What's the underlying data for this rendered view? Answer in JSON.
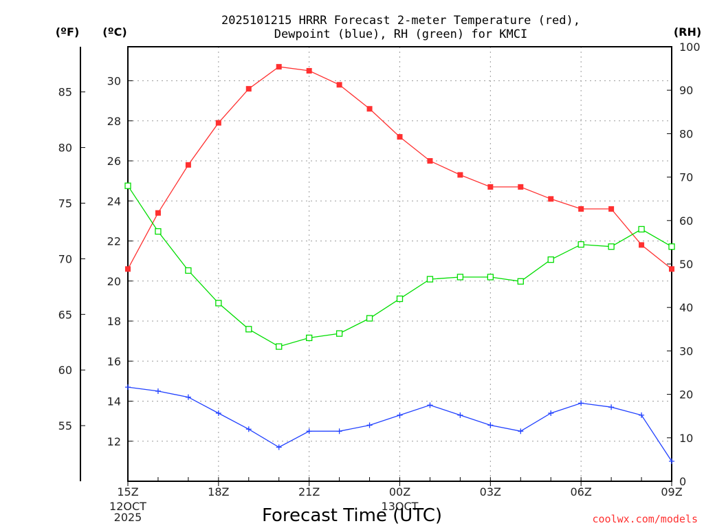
{
  "chart_data": {
    "type": "line",
    "title_line1": "2025101215 HRRR Forecast 2-meter Temperature (red),",
    "title_line2": "Dewpoint (blue), RH (green) for KMCI",
    "xlabel": "Forecast Time (UTC)",
    "credit": "coolwx.com/models",
    "units": {
      "fahrenheit": "(ºF)",
      "celsius": "(ºC)",
      "rh": "(RH)"
    },
    "x_hours": [
      0,
      1,
      2,
      3,
      4,
      5,
      6,
      7,
      8,
      9,
      10,
      11,
      12,
      13,
      14,
      15,
      16,
      17,
      18
    ],
    "x_ticks": [
      {
        "hour": 0,
        "label": "15Z",
        "sub": [
          "12OCT",
          "2025"
        ]
      },
      {
        "hour": 3,
        "label": "18Z",
        "sub": []
      },
      {
        "hour": 6,
        "label": "21Z",
        "sub": []
      },
      {
        "hour": 9,
        "label": "00Z",
        "sub": [
          "13OCT"
        ]
      },
      {
        "hour": 12,
        "label": "03Z",
        "sub": []
      },
      {
        "hour": 15,
        "label": "06Z",
        "sub": []
      },
      {
        "hour": 18,
        "label": "09Z",
        "sub": []
      }
    ],
    "celsius_range": [
      10,
      31.7
    ],
    "celsius_ticks": [
      12,
      14,
      16,
      18,
      20,
      22,
      24,
      26,
      28,
      30
    ],
    "fahrenheit_ticks": [
      55,
      60,
      65,
      70,
      75,
      80,
      85
    ],
    "rh_range": [
      0,
      100
    ],
    "rh_ticks": [
      0,
      10,
      20,
      30,
      40,
      50,
      60,
      70,
      80,
      90,
      100
    ],
    "series": [
      {
        "name": "Temperature",
        "axis": "celsius",
        "color": "#ff3030",
        "marker": "filled-square",
        "values": [
          20.6,
          23.4,
          25.8,
          27.9,
          29.6,
          30.7,
          30.5,
          29.8,
          28.6,
          27.2,
          26.0,
          25.3,
          24.7,
          24.7,
          24.1,
          23.6,
          23.6,
          21.8,
          20.6
        ]
      },
      {
        "name": "Dewpoint",
        "axis": "celsius",
        "color": "#2040ff",
        "marker": "plus",
        "values": [
          14.7,
          14.5,
          14.2,
          13.4,
          12.6,
          11.7,
          12.5,
          12.5,
          12.8,
          13.3,
          13.8,
          13.3,
          12.8,
          12.5,
          13.4,
          13.9,
          13.7,
          13.3,
          11.0
        ]
      },
      {
        "name": "Relative Humidity",
        "axis": "rh",
        "color": "#00dd00",
        "marker": "open-square",
        "values": [
          68,
          57.5,
          48.5,
          41,
          35,
          31,
          33,
          34,
          37.5,
          42,
          46.5,
          47,
          47,
          46,
          51,
          54.5,
          54,
          58,
          54
        ]
      }
    ]
  }
}
